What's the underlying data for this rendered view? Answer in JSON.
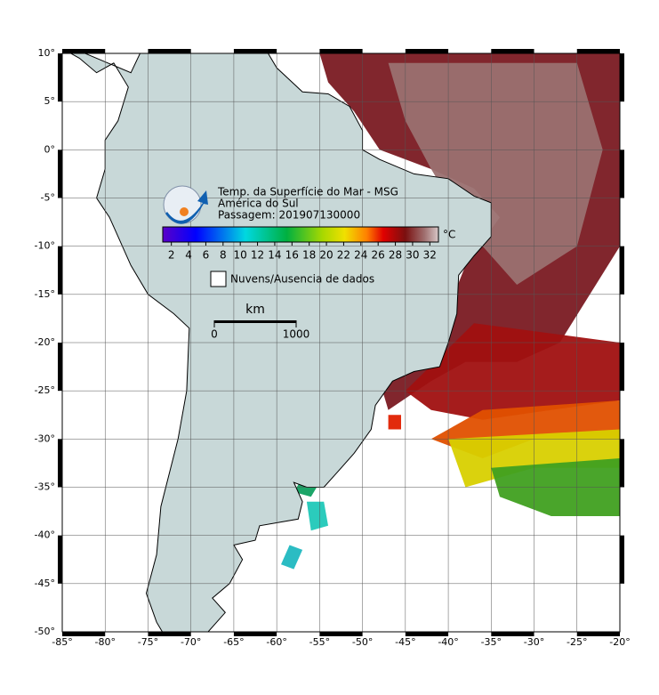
{
  "header": {
    "title": "Temp. da Superfície do Mar - MSG",
    "region": "América do Sul",
    "pass": "Passagem: 201907130000"
  },
  "colorbar": {
    "unit": "°C",
    "range": [
      1,
      33
    ],
    "ticks": [
      2,
      4,
      6,
      8,
      10,
      12,
      14,
      16,
      18,
      20,
      22,
      24,
      26,
      28,
      30,
      32
    ]
  },
  "legend": {
    "no_data": "Nuvens/Ausencia de dados"
  },
  "scale_bar": {
    "unit": "km",
    "ticks": [
      0,
      1000
    ]
  },
  "map": {
    "xlim": [
      -85,
      -20
    ],
    "ylim": [
      -50,
      10
    ],
    "xticks": [
      {
        "value": -85,
        "label": "-85°"
      },
      {
        "value": -80,
        "label": "-80°"
      },
      {
        "value": -75,
        "label": "-75°"
      },
      {
        "value": -70,
        "label": "-70°"
      },
      {
        "value": -65,
        "label": "-65°"
      },
      {
        "value": -60,
        "label": "-60°"
      },
      {
        "value": -55,
        "label": "-55°"
      },
      {
        "value": -50,
        "label": "-50°"
      },
      {
        "value": -45,
        "label": "-45°"
      },
      {
        "value": -40,
        "label": "-40°"
      },
      {
        "value": -35,
        "label": "-35°"
      },
      {
        "value": -30,
        "label": "-30°"
      },
      {
        "value": -25,
        "label": "-25°"
      },
      {
        "value": -20,
        "label": "-20°"
      }
    ],
    "yticks": [
      {
        "value": 10,
        "label": "10°"
      },
      {
        "value": 5,
        "label": "5°"
      },
      {
        "value": 0,
        "label": "0°"
      },
      {
        "value": -5,
        "label": "-5°"
      },
      {
        "value": -10,
        "label": "-10°"
      },
      {
        "value": -15,
        "label": "-15°"
      },
      {
        "value": -20,
        "label": "-20°"
      },
      {
        "value": -25,
        "label": "-25°"
      },
      {
        "value": -30,
        "label": "-30°"
      },
      {
        "value": -35,
        "label": "-35°"
      },
      {
        "value": -40,
        "label": "-40°"
      },
      {
        "value": -45,
        "label": "-45°"
      },
      {
        "value": -50,
        "label": "-50°"
      }
    ]
  }
}
